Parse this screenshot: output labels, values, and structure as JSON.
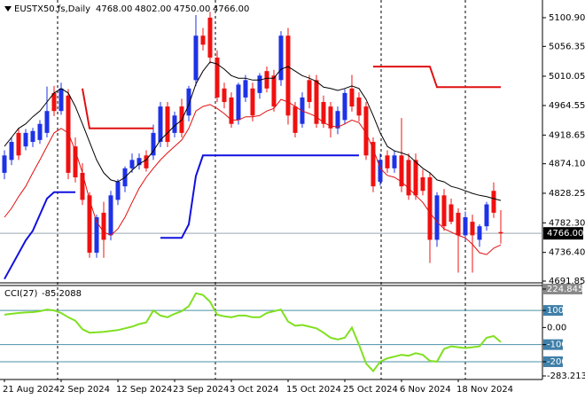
{
  "chart_data": [
    {
      "type": "candlestick",
      "title": "EUSTX50.fs,Daily",
      "ohlc_labels": [
        "4768.00",
        "4802.00",
        "4750.00",
        "4766.00"
      ],
      "categories": [
        "21 Aug 2024",
        null,
        null,
        null,
        null,
        null,
        null,
        null,
        "2 Sep 2024",
        null,
        null,
        null,
        null,
        null,
        null,
        null,
        "12 Sep 2024",
        null,
        null,
        null,
        null,
        null,
        null,
        null,
        "23 Sep 2024",
        null,
        null,
        null,
        null,
        null,
        null,
        null,
        "3 Oct 2024",
        null,
        null,
        null,
        null,
        null,
        null,
        null,
        "15 Oct 2024",
        null,
        null,
        null,
        null,
        null,
        null,
        null,
        "25 Oct 2024",
        null,
        null,
        null,
        null,
        null,
        null,
        null,
        "6 Nov 2024",
        null,
        null,
        null,
        null,
        null,
        null,
        null,
        "18 Nov 2024",
        null,
        null,
        null,
        null,
        null,
        null
      ],
      "open": [
        4860,
        4880,
        4922,
        4901,
        4908,
        4911,
        4922,
        4984,
        4956,
        4980,
        4901,
        4860,
        4825,
        4736,
        4798,
        4763,
        4818,
        4839,
        4867,
        4872,
        4887,
        4887,
        4908,
        4963,
        4922,
        4963,
        4949,
        5004,
        5073,
        5101,
        5039,
        4991,
        4977,
        4942,
        4977,
        4991,
        4984,
        5018,
        5011,
        5004,
        5073,
        4963,
        4936,
        5004,
        5004,
        4970,
        4963,
        4929,
        4942,
        4991,
        4977,
        4963,
        4908,
        4846,
        4887,
        4867,
        4887,
        4880,
        4880,
        4853,
        4853,
        4756,
        4825,
        4811,
        4798,
        4763,
        4784,
        4756,
        4777,
        4832,
        4768
      ],
      "high": [
        4895,
        4915,
        4930,
        4928,
        4930,
        4942,
        4994,
        4995,
        5000,
        4990,
        4915,
        4875,
        4830,
        4795,
        4815,
        4832,
        4850,
        4870,
        4890,
        4890,
        4895,
        4935,
        4970,
        4970,
        4955,
        4975,
        4995,
        5105,
        5085,
        5110,
        5050,
        5000,
        4985,
        5000,
        5012,
        5000,
        5015,
        5025,
        5020,
        5080,
        5085,
        4970,
        4985,
        5012,
        5012,
        4980,
        4970,
        4963,
        4990,
        5012,
        4985,
        4970,
        4915,
        4890,
        4895,
        4895,
        4945,
        4890,
        4890,
        4865,
        4860,
        4830,
        4835,
        4820,
        4805,
        4800,
        4795,
        4780,
        4815,
        4845,
        4802
      ],
      "low": [
        4850,
        4872,
        4880,
        4895,
        4900,
        4905,
        4915,
        4948,
        4950,
        4850,
        4845,
        4810,
        4728,
        4728,
        4728,
        4755,
        4810,
        4830,
        4860,
        4865,
        4862,
        4880,
        4900,
        4900,
        4915,
        4915,
        4940,
        4995,
        5050,
        5030,
        4970,
        4960,
        4930,
        4935,
        4970,
        4940,
        4975,
        4985,
        4955,
        4995,
        4935,
        4915,
        4930,
        4960,
        4930,
        4930,
        4915,
        4920,
        4935,
        4955,
        4940,
        4880,
        4830,
        4840,
        4860,
        4860,
        4830,
        4818,
        4818,
        4825,
        4720,
        4745,
        4770,
        4780,
        4705,
        4755,
        4705,
        4745,
        4770,
        4790,
        4750
      ],
      "close": [
        4887,
        4908,
        4887,
        4922,
        4925,
        4936,
        4956,
        4956,
        4991,
        4860,
        4853,
        4818,
        4736,
        4791,
        4756,
        4825,
        4846,
        4867,
        4880,
        4883,
        4867,
        4922,
        4963,
        4908,
        4949,
        4922,
        4991,
        5073,
        5059,
        5039,
        4977,
        4970,
        4936,
        4997,
        5004,
        4949,
        5011,
        4991,
        4963,
        5073,
        4949,
        4922,
        4977,
        4970,
        4936,
        4936,
        4929,
        4956,
        4984,
        4963,
        4949,
        4887,
        4839,
        4880,
        4867,
        4887,
        4839,
        4825,
        4825,
        4832,
        4756,
        4825,
        4777,
        4784,
        4763,
        4791,
        4763,
        4777,
        4811,
        4798,
        4766
      ],
      "up_color": "#1e32e6",
      "down_color": "#f01010",
      "lines": [
        {
          "color": "#000000",
          "width": 1,
          "values": [
            4901,
            4915,
            4929,
            4936,
            4947,
            4956,
            4970,
            4984,
            4991,
            4984,
            4963,
            4936,
            4908,
            4880,
            4860,
            4849,
            4846,
            4853,
            4864,
            4874,
            4880,
            4894,
            4911,
            4922,
            4933,
            4942,
            4966,
            4998,
            5018,
            5032,
            5029,
            5021,
            5011,
            5007,
            5007,
            5004,
            5004,
            5007,
            5007,
            5021,
            5025,
            5018,
            5011,
            5007,
            5002,
            4993,
            4991,
            4988,
            4991,
            4995,
            4991,
            4974,
            4949,
            4922,
            4901,
            4894,
            4891,
            4887,
            4877,
            4867,
            4860,
            4849,
            4846,
            4839,
            4836,
            4832,
            4828,
            4825,
            4823,
            4820,
            4817
          ]
        },
        {
          "color": "#e01010",
          "width": 1,
          "values": [
            4791,
            4805,
            4823,
            4839,
            4860,
            4880,
            4901,
            4922,
            4929,
            4922,
            4894,
            4860,
            4818,
            4784,
            4768,
            4763,
            4773,
            4791,
            4814,
            4836,
            4853,
            4867,
            4880,
            4891,
            4901,
            4911,
            4929,
            4956,
            4963,
            4966,
            4960,
            4952,
            4942,
            4942,
            4947,
            4947,
            4949,
            4956,
            4960,
            4974,
            4970,
            4963,
            4956,
            4952,
            4947,
            4938,
            4933,
            4931,
            4936,
            4942,
            4938,
            4922,
            4897,
            4867,
            4856,
            4853,
            4846,
            4836,
            4825,
            4814,
            4798,
            4784,
            4773,
            4768,
            4763,
            4759,
            4749,
            4736,
            4733,
            4743,
            4748
          ]
        },
        {
          "color": "#e01010",
          "width": 2,
          "values": [
            null,
            null,
            null,
            null,
            null,
            null,
            null,
            null,
            null,
            null,
            null,
            4991,
            4929,
            4929,
            4929,
            4929,
            4929,
            4929,
            4929,
            4929,
            4929,
            4929,
            null,
            null,
            null,
            null,
            null,
            null,
            null,
            null,
            null,
            null,
            null,
            null,
            null,
            null,
            null,
            null,
            null,
            null,
            null,
            null,
            null,
            null,
            null,
            null,
            null,
            null,
            null,
            null,
            null,
            null,
            5025,
            5025,
            5025,
            5025,
            5025,
            5025,
            5025,
            5025,
            5025,
            4993,
            4993,
            4993,
            4993,
            4993,
            4993,
            4993,
            4993,
            4993,
            4993
          ]
        },
        {
          "color": "#1010e0",
          "width": 2,
          "values": [
            4695,
            4715,
            4735,
            4755,
            4770,
            4795,
            4820,
            4830,
            4830,
            4830,
            4830,
            null,
            null,
            null,
            null,
            null,
            null,
            null,
            null,
            null,
            null,
            null,
            4759,
            4759,
            4759,
            4759,
            4780,
            4855,
            4887,
            4887,
            4887,
            4887,
            4887,
            4887,
            4887,
            4887,
            4887,
            4887,
            4887,
            4887,
            4887,
            4887,
            4887,
            4887,
            4887,
            4887,
            4887,
            4887,
            4887,
            4887,
            4887,
            null,
            null,
            null,
            null,
            null,
            null,
            null,
            null,
            null,
            null,
            null,
            null,
            null,
            null,
            null,
            null,
            null,
            null,
            null,
            null
          ]
        }
      ],
      "ylim": [
        4690.5,
        5128.4
      ],
      "yticks": [
        {
          "value": 5100.9,
          "label": "5100.90"
        },
        5056.35,
        5010.05,
        4964.55,
        4918.65,
        {
          "value": 4874.1,
          "label": "4874.10"
        },
        4828.25,
        {
          "value": 4782.3,
          "label": "4782.30"
        },
        {
          "value": 4736.4,
          "label": "4736.40"
        },
        4691.85
      ]
    },
    {
      "type": "line",
      "title": "CCI(27)",
      "color": "#80e020",
      "values": [
        75,
        80,
        85,
        88,
        90,
        95,
        105,
        100,
        85,
        60,
        40,
        -10,
        -30,
        -28,
        -25,
        -20,
        -15,
        -5,
        5,
        20,
        30,
        100,
        70,
        60,
        80,
        95,
        125,
        200,
        190,
        150,
        75,
        65,
        60,
        70,
        70,
        60,
        60,
        85,
        95,
        105,
        35,
        10,
        15,
        5,
        -5,
        -30,
        -60,
        -70,
        -60,
        0,
        -100,
        -210,
        -255,
        -200,
        -180,
        -170,
        -160,
        -165,
        -150,
        -160,
        -195,
        -200,
        -125,
        -110,
        -115,
        -120,
        -115,
        -110,
        -60,
        -50,
        -85.2088
      ],
      "ylim": [
        -283.2131,
        224.8455
      ],
      "yticks": [
        224.8455,
        100,
        {
          "value": 0,
          "label": "0.00"
        },
        -100,
        -200,
        -283.2131
      ],
      "level_lines": [
        100,
        -100,
        -200
      ]
    }
  ]
}
